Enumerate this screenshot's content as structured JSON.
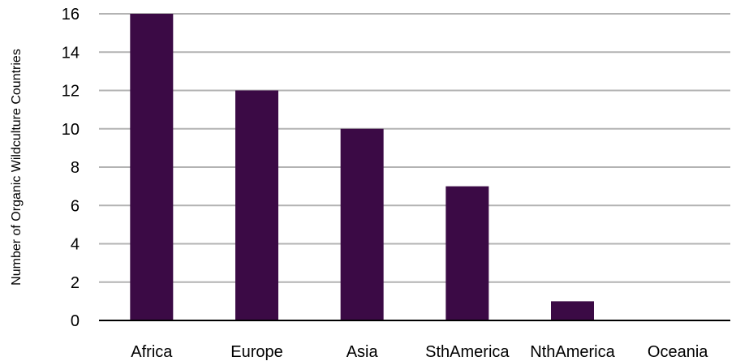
{
  "chart_data": {
    "type": "bar",
    "title": "",
    "xlabel": "",
    "ylabel": "Number of Organic Wildculture Countries",
    "categories": [
      "Africa",
      "Europe",
      "Asia",
      "SthAmerica",
      "NthAmerica",
      "Oceania"
    ],
    "values": [
      16,
      12,
      10,
      7,
      1,
      0
    ],
    "ylim": [
      0,
      16
    ],
    "yticks": [
      0,
      2,
      4,
      6,
      8,
      10,
      12,
      14,
      16
    ],
    "grid": true,
    "legend": "none"
  },
  "colors": {
    "bar": "#3b0a45",
    "grid": "#b3b3b3",
    "axis": "#000000"
  }
}
